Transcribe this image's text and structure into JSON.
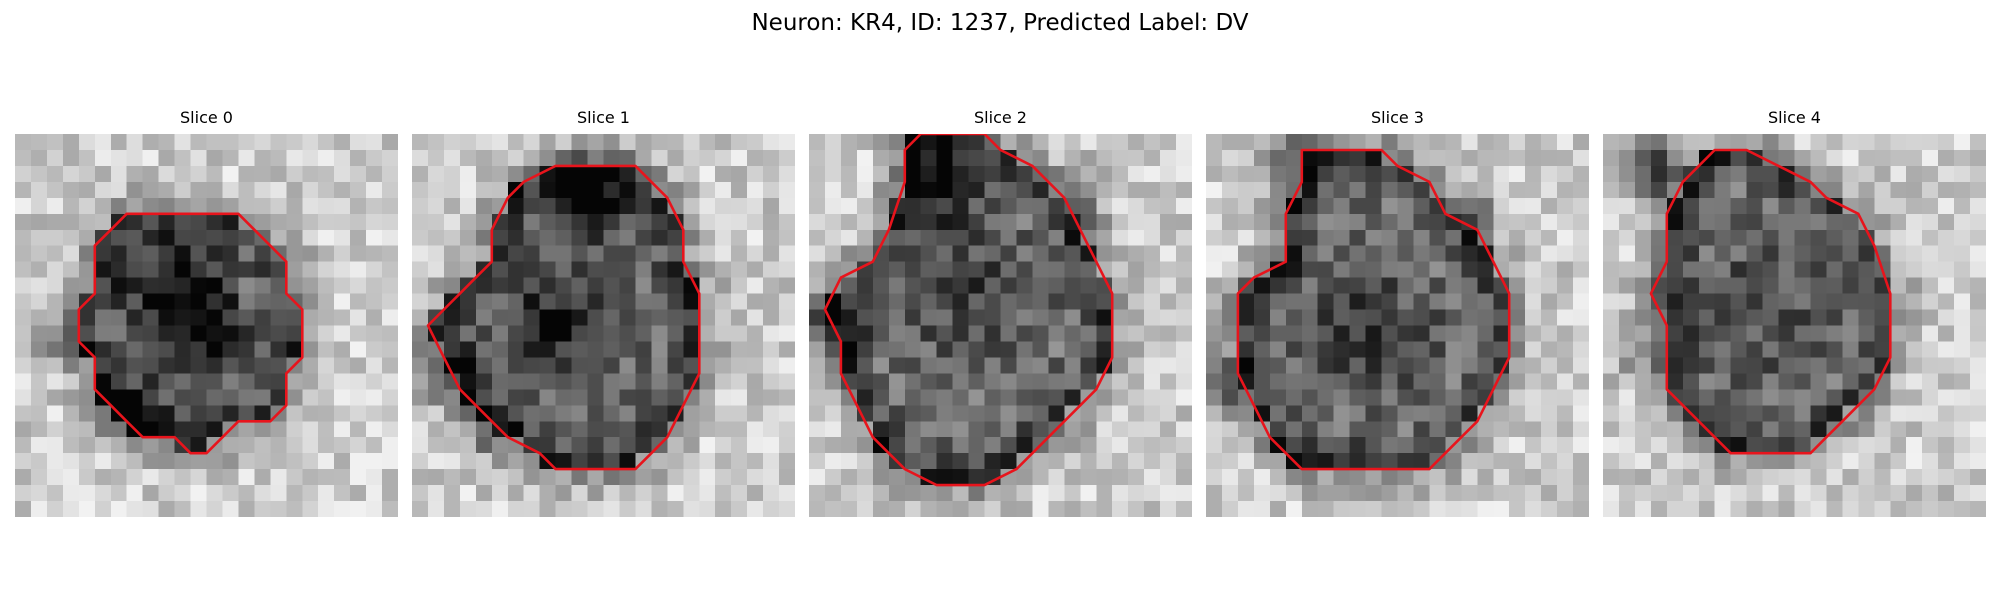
{
  "figure": {
    "title": "Neuron: KR4, ID: 1237, Predicted Label: DV",
    "contour_color": "#e8141c",
    "panels": [
      {
        "title": "Slice 0",
        "seed": 11,
        "contour": [
          [
            11,
            5
          ],
          [
            14,
            5
          ],
          [
            17,
            8
          ],
          [
            17,
            10
          ],
          [
            18,
            11
          ],
          [
            18,
            14
          ],
          [
            17,
            15
          ],
          [
            17,
            17
          ],
          [
            16,
            18
          ],
          [
            14,
            18
          ],
          [
            13,
            19
          ],
          [
            12,
            20
          ],
          [
            11,
            20
          ],
          [
            10,
            19
          ],
          [
            8,
            19
          ],
          [
            7,
            18
          ],
          [
            6,
            17
          ],
          [
            5,
            16
          ],
          [
            5,
            14
          ],
          [
            4,
            13
          ],
          [
            4,
            11
          ],
          [
            5,
            10
          ],
          [
            5,
            7
          ],
          [
            6,
            6
          ],
          [
            7,
            5
          ]
        ],
        "dark_spots": [
          [
            10,
            10,
            5,
            0.45
          ],
          [
            12,
            13,
            4,
            0.3
          ],
          [
            7,
            17,
            4,
            0.25
          ],
          [
            2,
            13,
            3,
            0.25
          ]
        ]
      },
      {
        "title": "Slice 1",
        "seed": 23,
        "contour": [
          [
            12,
            2
          ],
          [
            14,
            2
          ],
          [
            15,
            3
          ],
          [
            16,
            4
          ],
          [
            17,
            6
          ],
          [
            17,
            8
          ],
          [
            18,
            10
          ],
          [
            18,
            13
          ],
          [
            18,
            15
          ],
          [
            17,
            17
          ],
          [
            16,
            19
          ],
          [
            15,
            20
          ],
          [
            14,
            21
          ],
          [
            9,
            21
          ],
          [
            8,
            20
          ],
          [
            6,
            19
          ],
          [
            5,
            18
          ],
          [
            3,
            16
          ],
          [
            2,
            14
          ],
          [
            1,
            12
          ],
          [
            2,
            11
          ],
          [
            3,
            10
          ],
          [
            4,
            9
          ],
          [
            5,
            8
          ],
          [
            5,
            6
          ],
          [
            6,
            4
          ],
          [
            7,
            3
          ],
          [
            9,
            2
          ]
        ],
        "dark_spots": [
          [
            11,
            4,
            4,
            0.55
          ],
          [
            9,
            12,
            5,
            0.35
          ],
          [
            2,
            15,
            3,
            0.3
          ],
          [
            5,
            19,
            3,
            0.25
          ]
        ]
      },
      {
        "title": "Slice 2",
        "seed": 37,
        "contour": [
          [
            7,
            0
          ],
          [
            11,
            0
          ],
          [
            12,
            1
          ],
          [
            14,
            2
          ],
          [
            15,
            3
          ],
          [
            16,
            4
          ],
          [
            17,
            6
          ],
          [
            18,
            8
          ],
          [
            19,
            10
          ],
          [
            19,
            14
          ],
          [
            18,
            16
          ],
          [
            16,
            18
          ],
          [
            15,
            19
          ],
          [
            14,
            20
          ],
          [
            13,
            21
          ],
          [
            11,
            22
          ],
          [
            8,
            22
          ],
          [
            6,
            21
          ],
          [
            5,
            20
          ],
          [
            4,
            19
          ],
          [
            3,
            17
          ],
          [
            2,
            15
          ],
          [
            2,
            13
          ],
          [
            1,
            11
          ],
          [
            2,
            9
          ],
          [
            4,
            8
          ],
          [
            5,
            6
          ],
          [
            6,
            3
          ],
          [
            6,
            1
          ]
        ],
        "dark_spots": [
          [
            8,
            3,
            4,
            0.4
          ],
          [
            1,
            12,
            3,
            0.45
          ],
          [
            10,
            10,
            6,
            0.2
          ],
          [
            17,
            4,
            3,
            0.25
          ]
        ]
      },
      {
        "title": "Slice 3",
        "seed": 53,
        "contour": [
          [
            6,
            1
          ],
          [
            11,
            1
          ],
          [
            12,
            2
          ],
          [
            14,
            3
          ],
          [
            15,
            5
          ],
          [
            17,
            6
          ],
          [
            18,
            8
          ],
          [
            19,
            10
          ],
          [
            19,
            14
          ],
          [
            18,
            16
          ],
          [
            17,
            18
          ],
          [
            16,
            19
          ],
          [
            14,
            21
          ],
          [
            6,
            21
          ],
          [
            4,
            19
          ],
          [
            3,
            17
          ],
          [
            2,
            15
          ],
          [
            2,
            10
          ],
          [
            3,
            9
          ],
          [
            5,
            8
          ],
          [
            5,
            5
          ],
          [
            6,
            3
          ]
        ],
        "dark_spots": [
          [
            5,
            2,
            3,
            0.35
          ],
          [
            1,
            16,
            3,
            0.45
          ],
          [
            10,
            12,
            6,
            0.2
          ],
          [
            17,
            5,
            2,
            0.3
          ]
        ]
      },
      {
        "title": "Slice 4",
        "seed": 71,
        "contour": [
          [
            7,
            1
          ],
          [
            9,
            1
          ],
          [
            11,
            2
          ],
          [
            13,
            3
          ],
          [
            14,
            4
          ],
          [
            16,
            5
          ],
          [
            17,
            7
          ],
          [
            18,
            10
          ],
          [
            18,
            14
          ],
          [
            17,
            16
          ],
          [
            16,
            17
          ],
          [
            15,
            18
          ],
          [
            14,
            19
          ],
          [
            13,
            20
          ],
          [
            8,
            20
          ],
          [
            6,
            18
          ],
          [
            5,
            17
          ],
          [
            4,
            16
          ],
          [
            4,
            12
          ],
          [
            3,
            10
          ],
          [
            4,
            8
          ],
          [
            4,
            5
          ],
          [
            5,
            3
          ],
          [
            6,
            2
          ]
        ],
        "dark_spots": [
          [
            3,
            2,
            3,
            0.6
          ],
          [
            10,
            11,
            6,
            0.15
          ],
          [
            2,
            14,
            3,
            0.2
          ]
        ]
      }
    ]
  }
}
